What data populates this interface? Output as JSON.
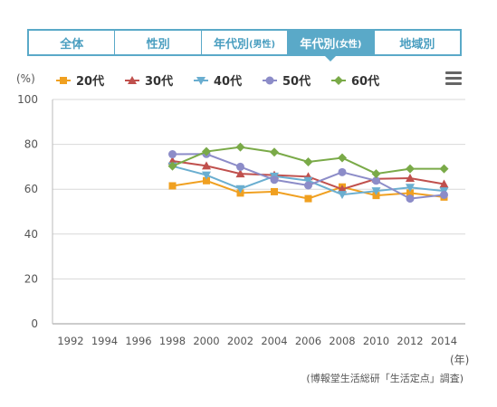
{
  "tabs": [
    {
      "label": "全体",
      "sub": "",
      "active": false
    },
    {
      "label": "性別",
      "sub": "",
      "active": false
    },
    {
      "label": "年代別",
      "sub": "(男性)",
      "active": false
    },
    {
      "label": "年代別",
      "sub": "(女性)",
      "active": true
    },
    {
      "label": "地域別",
      "sub": "",
      "active": false
    }
  ],
  "source": "(博報堂生活総研「生活定点」調査)",
  "menu_icon": "hamburger-menu-icon",
  "chart_data": {
    "type": "line",
    "ylabel": "(%)",
    "xlabel": "(年)",
    "ylim": [
      0,
      100
    ],
    "yticks": [
      0,
      20,
      40,
      60,
      80,
      100
    ],
    "x": [
      1992,
      1994,
      1996,
      1998,
      2000,
      2002,
      2004,
      2006,
      2008,
      2010,
      2012,
      2014
    ],
    "grid": "horizontal",
    "legend_position": "top",
    "series": [
      {
        "name": "20代",
        "color": "#f0a020",
        "marker": "square",
        "values": [
          null,
          null,
          null,
          61.5,
          63.8,
          58.3,
          58.9,
          55.8,
          61.0,
          57.2,
          58.3,
          56.5
        ]
      },
      {
        "name": "30代",
        "color": "#c0504d",
        "marker": "triangle",
        "values": [
          null,
          null,
          null,
          72.6,
          70.4,
          66.9,
          66.3,
          65.6,
          60.0,
          64.6,
          64.9,
          62.3
        ]
      },
      {
        "name": "40代",
        "color": "#6aaed0",
        "marker": "triangle-down",
        "values": [
          null,
          null,
          null,
          70.3,
          66.3,
          60.2,
          65.8,
          63.8,
          57.6,
          59.2,
          60.8,
          59.2
        ]
      },
      {
        "name": "50代",
        "color": "#8c8cc8",
        "marker": "circle",
        "values": [
          null,
          null,
          null,
          75.6,
          75.7,
          70.0,
          64.2,
          61.7,
          67.6,
          63.8,
          55.8,
          57.5
        ]
      },
      {
        "name": "60代",
        "color": "#7aaa48",
        "marker": "diamond",
        "values": [
          null,
          null,
          null,
          70.3,
          76.8,
          78.8,
          76.5,
          72.2,
          74.0,
          66.9,
          69.1,
          69.1
        ]
      }
    ]
  }
}
